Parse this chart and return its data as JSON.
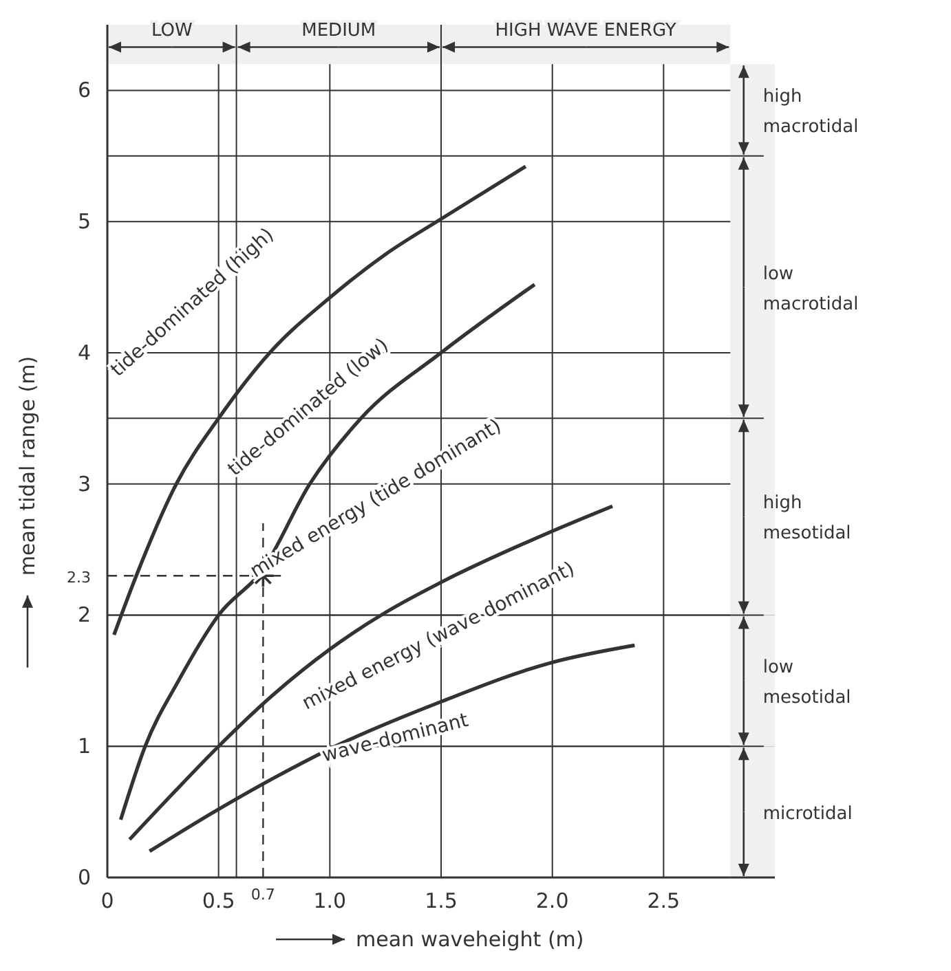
{
  "chart_data": {
    "type": "line",
    "xlabel": "mean waveheight (m)",
    "ylabel": "mean tidal range (m)",
    "xlim": [
      0,
      3
    ],
    "ylim": [
      0,
      6.5
    ],
    "xticks": [
      0,
      0.5,
      {
        "value": 0.7,
        "label": "0.7"
      },
      {
        "value": 1,
        "label": "1.0"
      },
      1.5,
      {
        "value": 2,
        "label": "2.0"
      },
      2.5
    ],
    "yticks": [
      0,
      1,
      2,
      {
        "value": 2.3,
        "label": "2.3"
      },
      3,
      4,
      5,
      6
    ],
    "grid": true,
    "marker": "none",
    "line_style": "solid",
    "series": [
      {
        "color": "#333333",
        "x": [
          0.03,
          0.13,
          0.31,
          0.5,
          0.73,
          1.0,
          1.25,
          1.5,
          1.88
        ],
        "values": [
          1.85,
          2.3,
          3.0,
          3.5,
          4.0,
          4.42,
          4.75,
          5.02,
          5.42
        ]
      },
      {
        "color": "#333333",
        "x": [
          0.06,
          0.17,
          0.32,
          0.5,
          0.7,
          0.91,
          1.14,
          1.5,
          1.92
        ],
        "values": [
          0.44,
          1.0,
          1.5,
          2.0,
          2.35,
          3.0,
          3.5,
          4.0,
          4.52
        ]
      },
      {
        "color": "#333333",
        "x": [
          0.1,
          0.3,
          0.5,
          0.75,
          1.0,
          1.25,
          1.5,
          2.0,
          2.27
        ],
        "values": [
          0.29,
          0.65,
          1.0,
          1.4,
          1.74,
          2.02,
          2.25,
          2.64,
          2.83
        ]
      },
      {
        "color": "#333333",
        "x": [
          0.19,
          0.5,
          0.75,
          1.0,
          1.5,
          2.0,
          2.37
        ],
        "values": [
          0.2,
          0.52,
          0.76,
          0.98,
          1.34,
          1.64,
          1.77
        ]
      },
      {
        "type": "scatter",
        "color": "#333333",
        "marker": "cross",
        "x": [
          0.7
        ],
        "values": [
          2.3
        ]
      }
    ],
    "ref_lines": [
      {
        "axis": "x",
        "value": 0.7,
        "line_style": "dashed"
      },
      {
        "axis": "y",
        "value": 2.3,
        "line_style": "dashed"
      }
    ],
    "bands": [
      {
        "axis": "x",
        "from": 0,
        "to": 0.58,
        "label": "LOW",
        "color": "#f0f0f0"
      },
      {
        "axis": "x",
        "from": 0.58,
        "to": 1.5,
        "label": "MEDIUM",
        "color": "#f0f0f0"
      },
      {
        "axis": "x",
        "from": 1.5,
        "to": 2.8,
        "label": "HIGH WAVE ENERGY",
        "color": "#f0f0f0"
      },
      {
        "axis": "y",
        "from": 5.5,
        "to": 6.2,
        "label": "high macrotidal",
        "color": "#f0f0f0"
      },
      {
        "axis": "y",
        "from": 3.5,
        "to": 5.5,
        "label": "low macrotidal",
        "color": "#f0f0f0"
      },
      {
        "axis": "y",
        "from": 2,
        "to": 3.5,
        "label": "high mesotidal",
        "color": "#f0f0f0"
      },
      {
        "axis": "y",
        "from": 1,
        "to": 2,
        "label": "low mesotidal",
        "color": "#f0f0f0"
      },
      {
        "axis": "y",
        "from": 0,
        "to": 1,
        "label": "microtidal",
        "color": "#f0f0f0"
      }
    ],
    "annotations": [
      "tide-dominated (high)",
      "tide-dominated (low)",
      "mixed energy (tide dominant)",
      "mixed energy (wave dominant)",
      "wave-dominant"
    ]
  }
}
